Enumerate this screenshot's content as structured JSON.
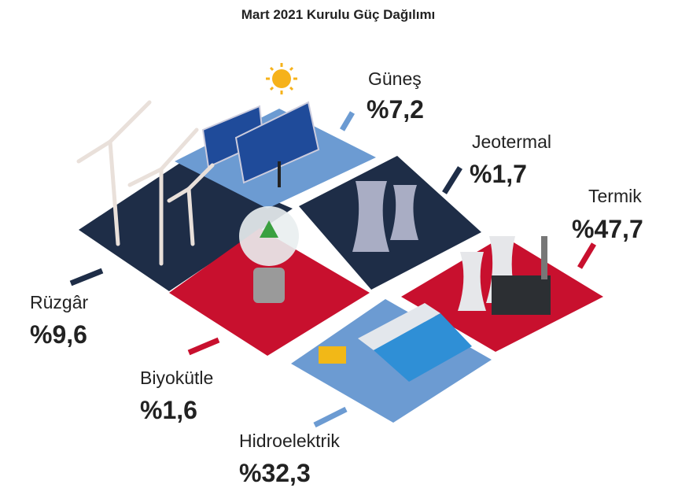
{
  "title": "Mart 2021 Kurulu Güç Dağılımı",
  "items": [
    {
      "name": "Güneş",
      "value": "%7,2"
    },
    {
      "name": "Jeotermal",
      "value": "%1,7"
    },
    {
      "name": "Termik",
      "value": "%47,7"
    },
    {
      "name": "Rüzgâr",
      "value": "%9,6"
    },
    {
      "name": "Biyokütle",
      "value": "%1,6"
    },
    {
      "name": "Hidroelektrik",
      "value": "%32,3"
    }
  ]
}
